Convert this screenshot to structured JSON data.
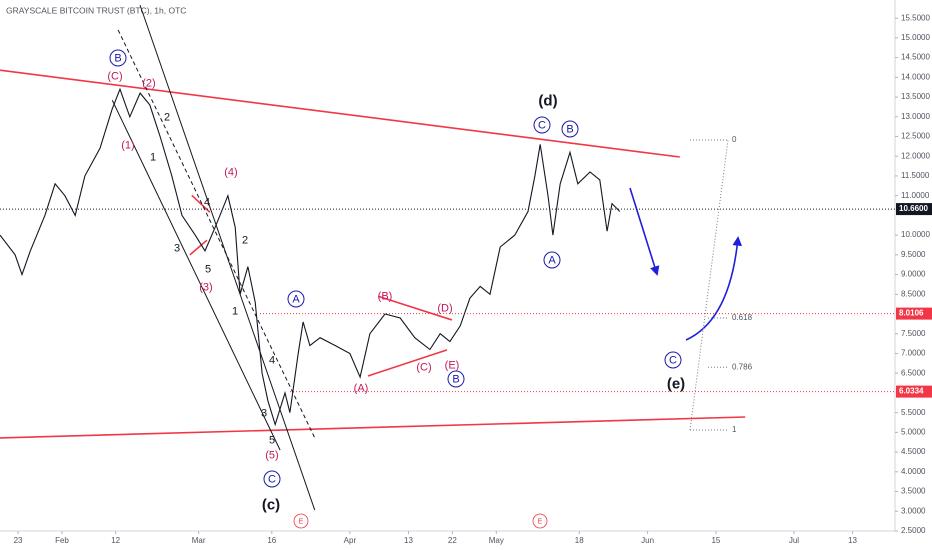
{
  "chart_data": {
    "type": "line",
    "title": "GRAYSCALE BITCOIN TRUST (BTC), 1h, OTC",
    "color": "#131722",
    "x": [
      19.3,
      22.4,
      23.8,
      25.5,
      28.5,
      30.6,
      32.6,
      34.7,
      36.7,
      39.8,
      42.3,
      43.9,
      45.9,
      48.0,
      50.0,
      52.1,
      54.5,
      56.6,
      59.3,
      61.3,
      63.4,
      66.0,
      67.5,
      68.5,
      70.1,
      71.6,
      73.0,
      74.2,
      75.7,
      77.7,
      78.7,
      80.4,
      81.4,
      82.8,
      84.9,
      88.0,
      91.0,
      93.1,
      95.1,
      98.2,
      101.3,
      104.3,
      107.4,
      109.5,
      111.5,
      113.6,
      115.6,
      117.7,
      119.7,
      121.8,
      124.8,
      127.5,
      128.9,
      130.0,
      131.6,
      132.6,
      134.1,
      136.1,
      137.7,
      140.2,
      142.2,
      143.7,
      144.7,
      146.3
    ],
    "values": [
      10.0,
      9.5,
      9.0,
      9.6,
      10.5,
      11.3,
      11.0,
      10.5,
      11.5,
      12.2,
      13.2,
      13.7,
      13.0,
      13.6,
      13.3,
      12.5,
      11.5,
      10.5,
      10.0,
      9.6,
      10.2,
      11.0,
      10.2,
      8.5,
      9.2,
      8.3,
      6.5,
      5.8,
      5.2,
      6.0,
      5.5,
      7.0,
      7.8,
      7.2,
      7.4,
      7.2,
      7.0,
      6.4,
      7.5,
      8.0,
      7.9,
      7.4,
      7.1,
      7.5,
      7.3,
      7.7,
      8.4,
      8.7,
      8.5,
      9.7,
      10.0,
      10.6,
      11.5,
      12.3,
      11.0,
      10.0,
      11.3,
      12.1,
      11.3,
      11.6,
      11.4,
      10.1,
      10.8,
      10.6
    ],
    "xlim": [
      19.3,
      202.7
    ],
    "ylim": [
      2.5,
      15.96
    ],
    "xticks": [
      {
        "value": 23,
        "label": "23"
      },
      {
        "value": 32,
        "label": "Feb"
      },
      {
        "value": 43,
        "label": "12"
      },
      {
        "value": 60,
        "label": "Mar"
      },
      {
        "value": 75,
        "label": "16"
      },
      {
        "value": 91,
        "label": "Apr"
      },
      {
        "value": 103,
        "label": "13"
      },
      {
        "value": 112,
        "label": "22"
      },
      {
        "value": 121,
        "label": "May"
      },
      {
        "value": 138,
        "label": "18"
      },
      {
        "value": 152,
        "label": "Jun"
      },
      {
        "value": 166,
        "label": "15"
      },
      {
        "value": 182,
        "label": "Jul"
      },
      {
        "value": 194,
        "label": "13"
      }
    ],
    "yticks": [
      {
        "value": 15.5,
        "label": "15.5000"
      },
      {
        "value": 15.0,
        "label": "15.0000"
      },
      {
        "value": 14.5,
        "label": "14.5000"
      },
      {
        "value": 14.0,
        "label": "14.0000"
      },
      {
        "value": 13.5,
        "label": "13.5000"
      },
      {
        "value": 13.0,
        "label": "13.0000"
      },
      {
        "value": 12.5,
        "label": "12.5000"
      },
      {
        "value": 12.0,
        "label": "12.0000"
      },
      {
        "value": 11.5,
        "label": "11.5000"
      },
      {
        "value": 11.0,
        "label": "11.0000"
      },
      {
        "value": 10.0,
        "label": "10.0000"
      },
      {
        "value": 9.5,
        "label": "9.5000"
      },
      {
        "value": 9.0,
        "label": "9.0000"
      },
      {
        "value": 8.5,
        "label": "8.5000"
      },
      {
        "value": 7.5,
        "label": "7.5000"
      },
      {
        "value": 7.0,
        "label": "7.0000"
      },
      {
        "value": 6.5,
        "label": "6.5000"
      },
      {
        "value": 5.5,
        "label": "5.5000"
      },
      {
        "value": 5.0,
        "label": "5.0000"
      },
      {
        "value": 4.5,
        "label": "4.5000"
      },
      {
        "value": 4.0,
        "label": "4.0000"
      },
      {
        "value": 3.5,
        "label": "3.5000"
      },
      {
        "value": 3.0,
        "label": "3.0000"
      },
      {
        "value": 2.5,
        "label": "2.5000"
      }
    ],
    "grid": false,
    "hlines": [
      {
        "value": 10.66,
        "label": "10.6600",
        "color": "#131722"
      },
      {
        "value": 8.0106,
        "label": "8.0106",
        "color": "#f23645"
      },
      {
        "value": 6.0334,
        "label": "6.0334",
        "color": "#f23645"
      }
    ],
    "lines": [
      {
        "color": "#f23645",
        "dash": false,
        "x": [
          19.3,
          158.6
        ],
        "y": [
          14.18,
          11.98
        ]
      },
      {
        "color": "#f23645",
        "dash": false,
        "x": [
          19.3,
          172.0
        ],
        "y": [
          4.86,
          5.39
        ]
      },
      {
        "color": "#f23645",
        "dash": false,
        "x": [
          96.8,
          111.9
        ],
        "y": [
          8.45,
          7.85
        ]
      },
      {
        "color": "#f23645",
        "dash": false,
        "x": [
          94.7,
          110.9
        ],
        "y": [
          6.43,
          7.09
        ]
      },
      {
        "color": "#f23645",
        "dash": false,
        "x": [
          58.6,
          62.3
        ],
        "y": [
          11.01,
          10.58
        ]
      },
      {
        "color": "#f23645",
        "dash": false,
        "x": [
          58.2,
          61.7
        ],
        "y": [
          9.5,
          9.87
        ]
      },
      {
        "color": "#131722",
        "dash": false,
        "x": [
          48.0,
          83.8
        ],
        "y": [
          15.83,
          3.03
        ]
      },
      {
        "color": "#131722",
        "dash": false,
        "x": [
          42.3,
          76.7
        ],
        "y": [
          13.42,
          4.55
        ]
      },
      {
        "color": "#131722",
        "dash": true,
        "x": [
          43.5,
          83.8
        ],
        "y": [
          15.2,
          4.86
        ]
      }
    ],
    "fib": [
      {
        "value": 12.41,
        "label": "0"
      },
      {
        "value": 7.9,
        "label": "0.618"
      },
      {
        "value": 6.65,
        "label": "0.786"
      },
      {
        "value": 5.06,
        "label": "1"
      }
    ],
    "annotations": [
      {
        "text": "(C)",
        "color": "#c2185b"
      },
      {
        "text": "(2)",
        "color": "#c2185b"
      },
      {
        "text": "B",
        "color": "#1a1aa6",
        "circled": true
      },
      {
        "text": "2",
        "color": "#131722"
      },
      {
        "text": "(1)",
        "color": "#c2185b"
      },
      {
        "text": "1",
        "color": "#131722"
      },
      {
        "text": "(4)",
        "color": "#c2185b"
      },
      {
        "text": "4",
        "color": "#131722"
      },
      {
        "text": "3",
        "color": "#131722"
      },
      {
        "text": "5",
        "color": "#131722"
      },
      {
        "text": "(3)",
        "color": "#c2185b"
      },
      {
        "text": "2",
        "color": "#131722"
      },
      {
        "text": "1",
        "color": "#131722"
      },
      {
        "text": "A",
        "color": "#1a1aa6",
        "circled": true
      },
      {
        "text": "4",
        "color": "#131722"
      },
      {
        "text": "3",
        "color": "#131722"
      },
      {
        "text": "5",
        "color": "#131722"
      },
      {
        "text": "(5)",
        "color": "#c2185b"
      },
      {
        "text": "C",
        "color": "#1a1aa6",
        "circled": true
      },
      {
        "text": "(c)",
        "color": "#131722",
        "bold": true
      },
      {
        "text": "E",
        "color": "#f23645",
        "circled": true,
        "small": true
      },
      {
        "text": "(B)",
        "color": "#c2185b"
      },
      {
        "text": "(D)",
        "color": "#c2185b"
      },
      {
        "text": "(C)",
        "color": "#c2185b"
      },
      {
        "text": "(E)",
        "color": "#c2185b"
      },
      {
        "text": "B",
        "color": "#1a1aa6",
        "circled": true
      },
      {
        "text": "(A)",
        "color": "#c2185b"
      },
      {
        "text": "(d)",
        "color": "#131722",
        "bold": true
      },
      {
        "text": "C",
        "color": "#1a1aa6",
        "circled": true
      },
      {
        "text": "B",
        "color": "#1a1aa6",
        "circled": true
      },
      {
        "text": "A",
        "color": "#1a1aa6",
        "circled": true
      },
      {
        "text": "C",
        "color": "#1a1aa6",
        "circled": true
      },
      {
        "text": "(e)",
        "color": "#131722",
        "bold": true
      },
      {
        "text": "E",
        "color": "#f23645",
        "circled": true,
        "small": true
      }
    ]
  }
}
